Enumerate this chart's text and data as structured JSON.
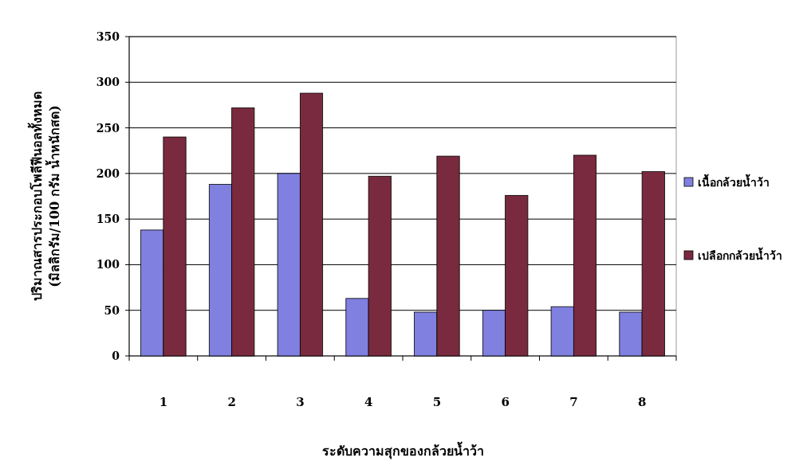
{
  "chart_data": {
    "type": "bar",
    "categories": [
      "1",
      "2",
      "3",
      "4",
      "5",
      "6",
      "7",
      "8"
    ],
    "series": [
      {
        "name": "เนื้อกล้วยน้ำว้า",
        "color": "#8080e0",
        "values": [
          138,
          188,
          200,
          63,
          48,
          50,
          54,
          48
        ]
      },
      {
        "name": "เปลือกกล้วยน้ำว้า",
        "color": "#7a2a3e",
        "values": [
          240,
          272,
          288,
          197,
          219,
          176,
          220,
          202
        ]
      }
    ],
    "ylim": [
      0,
      350
    ],
    "yticks": [
      0,
      50,
      100,
      150,
      200,
      250,
      300,
      350
    ],
    "grid": "y",
    "legend": "right",
    "xlabel": "ระดับความสุกของกล้วยน้ำว้า",
    "ylabel": "ปริมาณสารประกอบโพลีฟีนอลทั้งหมด\n(มิลลิกรัม/100 กรัม น้ำหนักสด)"
  }
}
